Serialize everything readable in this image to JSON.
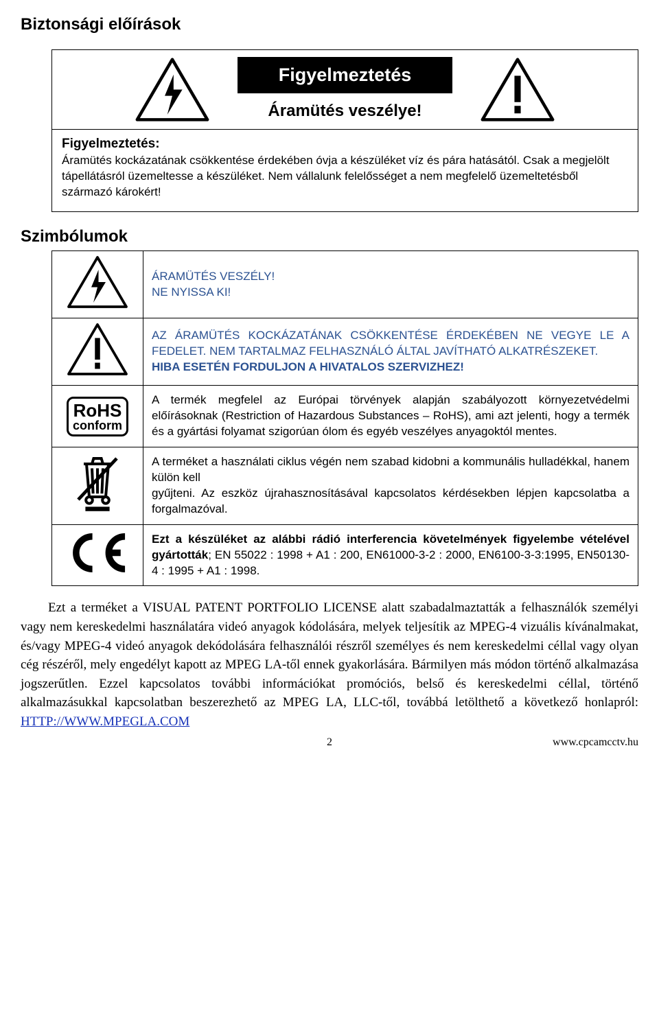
{
  "section_title": "Biztonsági előírások",
  "warning": {
    "title": "Figyelmeztetés",
    "subtitle": "Áramütés veszélye!",
    "body_lead": "Figyelmeztetés:",
    "body_text": "Áramütés kockázatának csökkentése érdekében óvja a készüléket víz és pára hatásától. Csak a megjelölt tápellátásról üzemeltesse a készüléket. Nem vállalunk felelősséget a nem megfelelő üzemeltetésből származó károkért!"
  },
  "symbols_title": "Szimbólumok",
  "symbols": [
    {
      "icon": "shock",
      "text_html": "ÁRAMÜTÉS VESZÉLY!\nNE NYISSA KI!",
      "color": "#2b5191",
      "bold_lines": []
    },
    {
      "icon": "exclaim",
      "text_html": "AZ ÁRAMÜTÉS KOCKÁZATÁNAK CSÖKKENTÉSE ÉRDEKÉBEN NE VEGYE LE A FEDELET. NEM TARTALMAZ FELHASZNÁLÓ ÁLTAL JAVÍTHATÓ ALKATRÉSZEKET.\n<b>HIBA ESETÉN FORDULJON A HIVATALOS SZERVIZHEZ!</b>",
      "color": "#2b5191",
      "justify": true
    },
    {
      "icon": "rohs",
      "text_html": "A termék megfelel az Európai törvények alapján szabályozott környezetvédelmi előírásoknak (Restriction of Hazardous Substances – RoHS), ami azt jelenti, hogy a termék és a gyártási folyamat szigorúan ólom és egyéb veszélyes anyagoktól mentes.",
      "color": "#000",
      "justify": true
    },
    {
      "icon": "weee",
      "text_html": "A terméket a használati ciklus végén nem szabad kidobni a kommunális hulladékkal, hanem külön kell\ngyűjteni. Az eszköz újrahasznosításával kapcsolatos kérdésekben lépjen kapcsolatba a forgalmazóval.",
      "color": "#000",
      "justify": true
    },
    {
      "icon": "ce",
      "text_html": "<b>Ezt a készüléket az alábbi rádió interferencia követelmények figyelembe vételével gyártották</b>; EN 55022 : 1998 + A1 : 200, EN61000-3-2 : 2000, EN6100-3-3:1995, EN50130-4 : 1995 + A1 : 1998.",
      "color": "#000",
      "justify": true
    }
  ],
  "paragraph": "Ezt a terméket a VISUAL PATENT PORTFOLIO LICENSE alatt szabadalmaztatták a felhasználók személyi vagy nem kereskedelmi használatára videó anyagok kódolására, melyek teljesítik az MPEG-4 vizuális kívánalmakat, és/vagy MPEG-4 videó anyagok dekódolására felhasználói részről személyes és nem kereskedelmi céllal vagy olyan cég részéről, mely engedélyt kapott az MPEG LA-től ennek gyakorlására. Bármilyen más módon történő alkalmazása jogszerűtlen. Ezzel kapcsolatos további információkat promóciós, belső és kereskedelmi céllal, történő alkalmazásukkal kapcsolatban beszerezhető az MPEG LA, LLC-től, továbbá letölthető a következő honlapról: ",
  "link_text": "HTTP://WWW.MPEGLA.COM",
  "footer": {
    "page": "2",
    "url": "www.cpcamcctv.hu"
  },
  "colors": {
    "blue": "#2b5191",
    "link": "#1733b8",
    "black": "#000000"
  }
}
